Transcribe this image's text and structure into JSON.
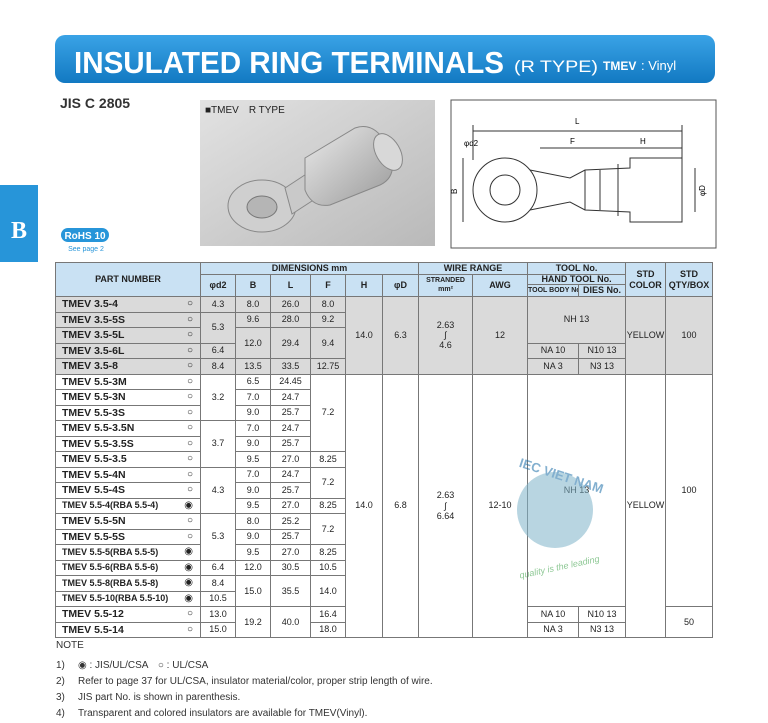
{
  "header": {
    "title": "INSULATED RING TERMINALS",
    "type": "(R TYPE)",
    "series": "TMEV",
    "material": ": Vinyl"
  },
  "standard": "JIS C 2805",
  "side_tab": "B",
  "rohs": {
    "label": "RoHS 10",
    "note": "See page 2"
  },
  "photo": {
    "caption": "■TMEV　R TYPE"
  },
  "diagram": {
    "labels": {
      "L": "L",
      "F": "F",
      "H": "H",
      "d2": "φd2",
      "B": "B",
      "D": "φD"
    }
  },
  "table": {
    "header": {
      "part": "PART NUMBER",
      "dimensions": "DIMENSIONS mm",
      "wire": "WIRE RANGE",
      "tool": "TOOL No.",
      "hand_tool": "HAND TOOL No.",
      "tool_body": "TOOL BODY No.",
      "dies": "DIES No.",
      "std_color": [
        "STD",
        "COLOR"
      ],
      "std_qty": [
        "STD",
        "QTY/BOX"
      ],
      "d2": "φd2",
      "B": "B",
      "L": "L",
      "F": "F",
      "H": "H",
      "D": "φD",
      "stranded": [
        "STRANDED",
        "mm²"
      ],
      "awg": "AWG"
    },
    "rows": [
      {
        "part": "TMEV 3.5-4",
        "mark": "○",
        "d2": "4.3",
        "B": "8.0",
        "L": "26.0",
        "F": "8.0",
        "H": "14.0",
        "D": "6.3",
        "stranded": [
          "2.63",
          "∫",
          "4.6"
        ],
        "awg": "12",
        "tool": "NH 13",
        "color": "YELLOW",
        "qty": "100"
      },
      {
        "part": "TMEV 3.5-5S",
        "mark": "○",
        "d2": "5.3",
        "B": "9.6",
        "L": "28.0",
        "F": "9.2"
      },
      {
        "part": "TMEV 3.5-5L",
        "mark": "○",
        "B": "12.0",
        "L": "29.4",
        "F": "9.4"
      },
      {
        "part": "TMEV 3.5-6L",
        "mark": "○",
        "d2": "6.4",
        "tool_body": "NA 10",
        "dies": "N10 13"
      },
      {
        "part": "TMEV 3.5-8",
        "mark": "○",
        "d2": "8.4",
        "B": "13.5",
        "L": "33.5",
        "F": "12.75",
        "tool_body": "NA 3",
        "dies": "N3 13"
      },
      {
        "part": "TMEV 5.5-3M",
        "mark": "○",
        "d2": "3.2",
        "B": "6.5",
        "L": "24.45",
        "F": "7.2",
        "H": "14.0",
        "D": "6.8",
        "stranded": [
          "2.63",
          "∫",
          "6.64"
        ],
        "awg": "12-10",
        "tool": "NH 13",
        "color": "YELLOW",
        "qty": "100"
      },
      {
        "part": "TMEV 5.5-3N",
        "mark": "○",
        "B": "7.0",
        "L": "24.7"
      },
      {
        "part": "TMEV 5.5-3S",
        "mark": "○",
        "B": "9.0",
        "L": "25.7"
      },
      {
        "part": "TMEV 5.5-3.5N",
        "mark": "○",
        "d2": "3.7",
        "B": "7.0",
        "L": "24.7"
      },
      {
        "part": "TMEV 5.5-3.5S",
        "mark": "○",
        "B": "9.0",
        "L": "25.7"
      },
      {
        "part": "TMEV 5.5-3.5",
        "mark": "○",
        "B": "9.5",
        "L": "27.0",
        "F": "8.25"
      },
      {
        "part": "TMEV 5.5-4N",
        "mark": "○",
        "d2": "4.3",
        "B": "7.0",
        "L": "24.7",
        "F": "7.2"
      },
      {
        "part": "TMEV 5.5-4S",
        "mark": "○",
        "B": "9.0",
        "L": "25.7"
      },
      {
        "part": "TMEV 5.5-4(RBA 5.5-4)",
        "mark": "◉",
        "B": "9.5",
        "L": "27.0",
        "F": "8.25"
      },
      {
        "part": "TMEV 5.5-5N",
        "mark": "○",
        "d2": "5.3",
        "B": "8.0",
        "L": "25.2",
        "F": "7.2"
      },
      {
        "part": "TMEV 5.5-5S",
        "mark": "○",
        "B": "9.0",
        "L": "25.7"
      },
      {
        "part": "TMEV 5.5-5(RBA 5.5-5)",
        "mark": "◉",
        "B": "9.5",
        "L": "27.0",
        "F": "8.25"
      },
      {
        "part": "TMEV 5.5-6(RBA 5.5-6)",
        "mark": "◉",
        "d2": "6.4",
        "B": "12.0",
        "L": "30.5",
        "F": "10.5"
      },
      {
        "part": "TMEV 5.5-8(RBA 5.5-8)",
        "mark": "◉",
        "d2": "8.4",
        "B": "15.0",
        "L": "35.5",
        "F": "14.0"
      },
      {
        "part": "TMEV 5.5-10(RBA 5.5-10)",
        "mark": "◉",
        "d2": "10.5"
      },
      {
        "part": "TMEV 5.5-12",
        "mark": "○",
        "d2": "13.0",
        "B": "19.2",
        "L": "40.0",
        "F": "16.4",
        "tool_body": "NA 10",
        "dies": "N10 13",
        "qty": "50"
      },
      {
        "part": "TMEV 5.5-14",
        "mark": "○",
        "d2": "15.0",
        "F": "18.0",
        "tool_body": "NA 3",
        "dies": "N3 13"
      }
    ]
  },
  "notes": {
    "title": "NOTE",
    "items": [
      {
        "num": "1)",
        "text": "◉ : JIS/UL/CSA　○ : UL/CSA"
      },
      {
        "num": "2)",
        "text": "Refer to page 37 for UL/CSA, insulator material/color, proper strip length of wire."
      },
      {
        "num": "3)",
        "text": "JIS part No. is shown in parenthesis."
      },
      {
        "num": "4)",
        "text": "Transparent and colored insulators are available for TMEV(Vinyl)."
      }
    ]
  },
  "watermark": {
    "name": "IEC VIET NAM",
    "slogan": "quality is the leading"
  }
}
